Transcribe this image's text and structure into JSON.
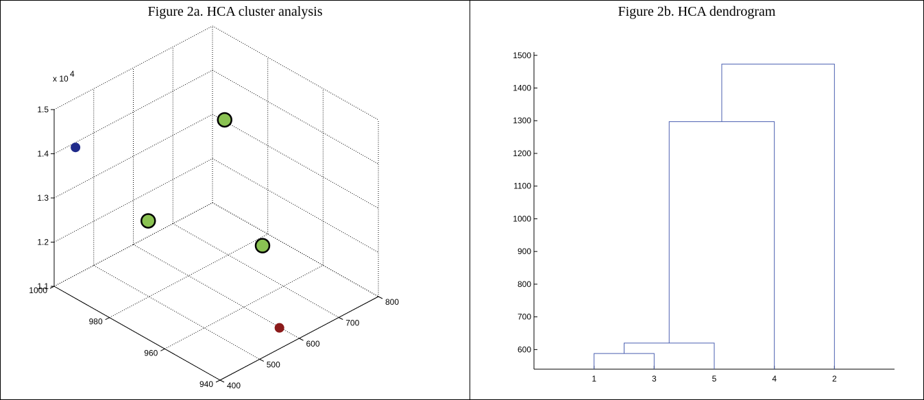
{
  "chart_data": [
    {
      "type": "scatter3d",
      "title": "Figure 2a. HCA cluster analysis",
      "axes": {
        "x": {
          "range": [
            400,
            800
          ],
          "ticks": [
            "400",
            "500",
            "600",
            "700",
            "800"
          ]
        },
        "y": {
          "range": [
            940,
            1000
          ],
          "ticks": [
            "940",
            "960",
            "980",
            "1000"
          ]
        },
        "z": {
          "range": [
            1.1,
            1.5
          ],
          "ticks": [
            "1.1",
            "1.2",
            "1.3",
            "1.4",
            "1.5"
          ],
          "multiplier": "x 10",
          "exponent": "4"
        }
      },
      "grid": true,
      "points": [
        {
          "x": 412,
          "y": 994,
          "z": 1.43,
          "color": "#1f2a8a",
          "group": "blue"
        },
        {
          "x": 470,
          "y": 976,
          "z": 1.3,
          "color": "#8ac252",
          "group": "green",
          "ringed": true
        },
        {
          "x": 691,
          "y": 980,
          "z": 1.41,
          "color": "#8ac252",
          "group": "green",
          "ringed": true
        },
        {
          "x": 654,
          "y": 961,
          "z": 1.21,
          "color": "#8ac252",
          "group": "green",
          "ringed": true
        },
        {
          "x": 578,
          "y": 944,
          "z": 1.12,
          "color": "#8b1a1a",
          "group": "red"
        }
      ]
    },
    {
      "type": "dendrogram",
      "title": "Figure 2b. HCA dendrogram",
      "leaves": [
        "1",
        "3",
        "5",
        "4",
        "2"
      ],
      "ylim": [
        540,
        1510
      ],
      "yticks": [
        "600",
        "700",
        "800",
        "900",
        "1000",
        "1100",
        "1200",
        "1300",
        "1400",
        "1500"
      ],
      "line_color": "#4a5fb0",
      "merges": [
        {
          "left": 1,
          "right": 2,
          "height": 588
        },
        {
          "left": 6,
          "right": 3,
          "height": 620
        },
        {
          "left": 7,
          "right": 4,
          "height": 1297
        },
        {
          "left": 8,
          "right": 5,
          "height": 1473
        }
      ]
    }
  ]
}
